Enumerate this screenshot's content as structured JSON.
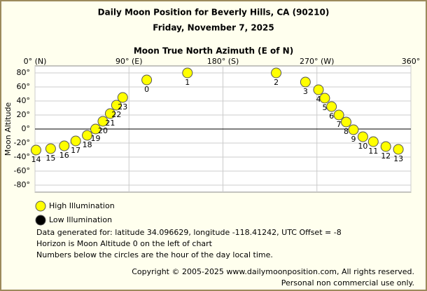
{
  "chart_data": {
    "type": "scatter",
    "title": "Daily Moon Position for Beverly Hills, CA (90210)",
    "subtitle": "Friday, November 7, 2025",
    "x_label": "Moon True North Azimuth (E of N)",
    "y_label": "Moon Altitude",
    "xlim": [
      0,
      360
    ],
    "ylim": [
      -90,
      90
    ],
    "xticks": [
      {
        "value": 0,
        "label": "0° (N)"
      },
      {
        "value": 90,
        "label": "90° (E)"
      },
      {
        "value": 180,
        "label": "180° (S)"
      },
      {
        "value": 270,
        "label": "270° (W)"
      },
      {
        "value": 360,
        "label": "360°"
      }
    ],
    "yticks": [
      {
        "value": -80,
        "label": "-80°"
      },
      {
        "value": -60,
        "label": "-60°"
      },
      {
        "value": -40,
        "label": "-40°"
      },
      {
        "value": -20,
        "label": "-20°"
      },
      {
        "value": 0,
        "label": "0°"
      },
      {
        "value": 20,
        "label": "20°"
      },
      {
        "value": 40,
        "label": "40°"
      },
      {
        "value": 60,
        "label": "60°"
      },
      {
        "value": 80,
        "label": "80°"
      }
    ],
    "grid": true,
    "series": [
      {
        "name": "High Illumination",
        "color": "#ffff00",
        "categories": [
          "0",
          "1",
          "2",
          "3",
          "4",
          "5",
          "6",
          "7",
          "8",
          "9",
          "10",
          "11",
          "12",
          "13",
          "14",
          "15",
          "16",
          "17",
          "18",
          "19",
          "20",
          "21",
          "22",
          "23"
        ],
        "x": [
          107,
          146,
          231,
          259,
          271.5,
          277.5,
          284,
          291,
          298,
          305,
          314,
          324,
          336,
          348,
          1,
          15,
          28,
          39,
          50,
          58,
          65,
          72,
          78,
          84
        ],
        "values": [
          70,
          80,
          80,
          67,
          56,
          44,
          32,
          20,
          10,
          -1,
          -11,
          -18,
          -25,
          -29,
          -30,
          -28,
          -24,
          -17,
          -9,
          0,
          11,
          22,
          34,
          45
        ]
      },
      {
        "name": "Low Illumination",
        "color": "#000000",
        "categories": [],
        "x": [],
        "values": []
      }
    ],
    "notes": [
      "Data generated for: latitude 34.096629, longitude -118.41242, UTC Offset = -8",
      "Horizon is Moon Altitude 0 on the left of chart",
      "Numbers below the circles are the hour of the day local time."
    ],
    "copyright": [
      "Copyright © 2005-2025 www.dailymoonposition.com, All rights reserved.",
      "Personal non commercial use only."
    ]
  }
}
